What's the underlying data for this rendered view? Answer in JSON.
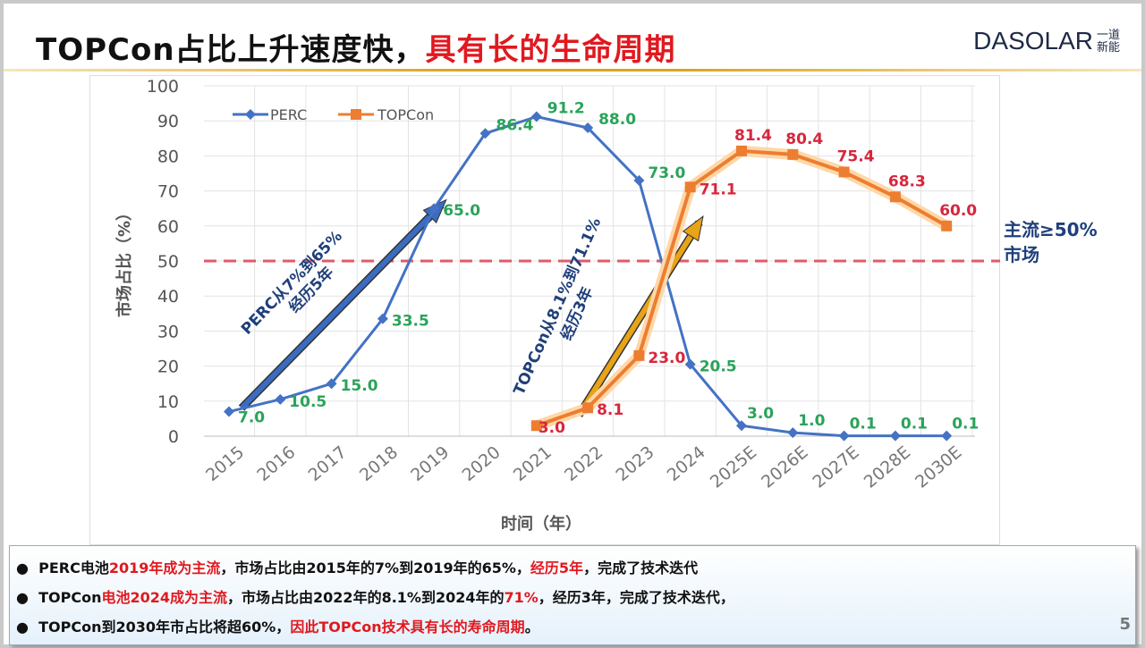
{
  "header": {
    "title_black": "TOPCon占比上升速度快，",
    "title_red": "具有长的生命周期",
    "logo": "DASOLAR",
    "logo_cn": "一道新能"
  },
  "chart_data": {
    "type": "line",
    "categories": [
      "2015",
      "2016",
      "2017",
      "2018",
      "2019",
      "2020",
      "2021",
      "2022",
      "2023",
      "2024",
      "2025E",
      "2026E",
      "2027E",
      "2028E",
      "2030E"
    ],
    "series": [
      {
        "name": "PERC",
        "color": "#4472c4",
        "values": [
          7.0,
          10.5,
          15.0,
          33.5,
          65.0,
          86.4,
          91.2,
          88.0,
          73.0,
          20.5,
          3.0,
          1.0,
          0.1,
          0.1,
          0.1
        ],
        "labels": [
          "7.0",
          "10.5",
          "15.0",
          "33.5",
          "65.0",
          "86.4",
          "91.2",
          "88.0",
          "73.0",
          "20.5",
          "3.0",
          "1.0",
          "0.1",
          "0.1",
          "0.1"
        ]
      },
      {
        "name": "TOPCon",
        "color": "#ed7d31",
        "values": [
          null,
          null,
          null,
          null,
          null,
          null,
          3.0,
          8.1,
          23.0,
          71.1,
          81.4,
          80.4,
          75.4,
          68.3,
          60.0
        ],
        "labels": [
          null,
          null,
          null,
          null,
          null,
          null,
          "3.0",
          "8.1",
          "23.0",
          "71.1",
          "81.4",
          "80.4",
          "75.4",
          "68.3",
          "60.0"
        ]
      }
    ],
    "ylim": [
      0,
      100
    ],
    "yticks": [
      "0",
      "10",
      "20",
      "30",
      "40",
      "50",
      "60",
      "70",
      "80",
      "90",
      "100"
    ],
    "xlabel": "时间（年）",
    "ylabel": "市场占比（%）",
    "legend": "top-left",
    "reference_line": {
      "value": 50,
      "label_1": "主流≥50%",
      "label_2": "市场"
    },
    "annotations": [
      {
        "text_1": "PERC从7%到65%",
        "text_2": "经历5年",
        "from": [
          "2015",
          8
        ],
        "to": [
          "2019",
          66
        ]
      },
      {
        "text_1": "TOPCon从8.1%到71.1%",
        "text_2": "经历3年",
        "from": [
          "2022",
          6
        ],
        "to": [
          "2024",
          61
        ]
      }
    ]
  },
  "notes": [
    {
      "a": "PERC电池",
      "b": "2019年成为主流",
      "c": "，市场占比由2015年的7%到2019年的65%，",
      "d": "经历5年",
      "e": "，完成了技术迭代"
    },
    {
      "a": "TOPCon",
      "b": "电池2024成为主流",
      "c": "，市场占比由2022年的8.1%到2024年的",
      "d": "71%",
      "e": "，经历3年，完成了技术迭代，"
    },
    {
      "a": "TOPCon到2030年市占比将超60%，",
      "b": "",
      "c": "",
      "d": "因此TOPCon技术具有长的寿命周期",
      "e": "。"
    }
  ],
  "page_number": "5"
}
